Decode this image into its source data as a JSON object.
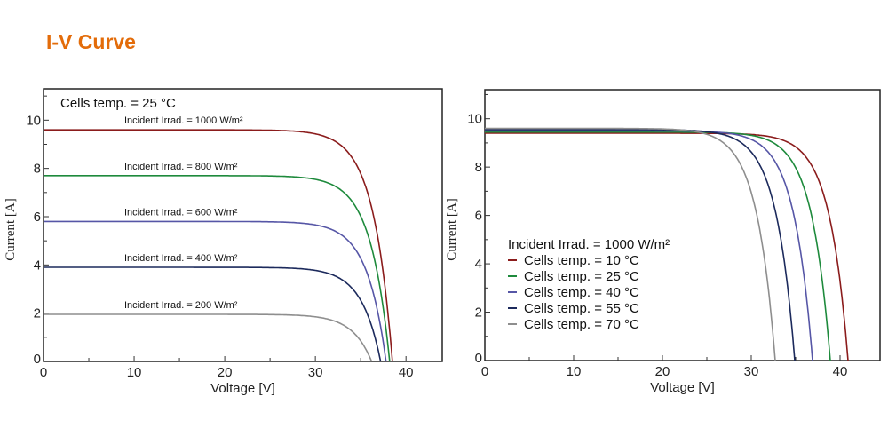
{
  "title": "I-V Curve",
  "chart_data": [
    {
      "type": "line",
      "xlabel": "Voltage [V]",
      "ylabel": "Current [A]",
      "xlim": [
        0,
        44
      ],
      "ylim": [
        0,
        11.3
      ],
      "xticks": [
        0,
        10,
        20,
        30,
        40
      ],
      "yticks": [
        0,
        2,
        4,
        6,
        8,
        10
      ],
      "grid": false,
      "annotation": "Cells temp. = 25 °C",
      "series": [
        {
          "name": "Incident Irrad. = 1000 W/m²",
          "color": "#8b1c1c",
          "isc": 9.6,
          "voc": 38.5
        },
        {
          "name": "Incident Irrad. = 800 W/m²",
          "color": "#1e8a3c",
          "isc": 7.7,
          "voc": 38.2
        },
        {
          "name": "Incident Irrad. = 600 W/m²",
          "color": "#5656a6",
          "isc": 5.8,
          "voc": 37.8
        },
        {
          "name": "Incident Irrad. = 400 W/m²",
          "color": "#1c2a5c",
          "isc": 3.9,
          "voc": 37.2
        },
        {
          "name": "Incident Irrad. = 200 W/m²",
          "color": "#8e8e8e",
          "isc": 1.95,
          "voc": 36.2
        }
      ]
    },
    {
      "type": "line",
      "xlabel": "Voltage [V]",
      "ylabel": "Current [A]",
      "xlim": [
        0,
        44.5
      ],
      "ylim": [
        0,
        11.2
      ],
      "xticks": [
        0,
        10,
        20,
        30,
        40
      ],
      "yticks": [
        0,
        2,
        4,
        6,
        8,
        10
      ],
      "grid": false,
      "legend_title": "Incident Irrad. = 1000 W/m²",
      "legend_position": "center-left",
      "series": [
        {
          "name": "Cells temp. = 10 °C",
          "color": "#8b1c1c",
          "isc": 9.4,
          "voc": 40.9
        },
        {
          "name": "Cells temp. = 25 °C",
          "color": "#1e8a3c",
          "isc": 9.45,
          "voc": 38.9
        },
        {
          "name": "Cells temp. = 40 °C",
          "color": "#5656a6",
          "isc": 9.5,
          "voc": 36.9
        },
        {
          "name": "Cells temp. = 55 °C",
          "color": "#1c2a5c",
          "isc": 9.55,
          "voc": 34.9
        },
        {
          "name": "Cells temp. = 70 °C",
          "color": "#8e8e8e",
          "isc": 9.6,
          "voc": 32.7
        }
      ]
    }
  ]
}
